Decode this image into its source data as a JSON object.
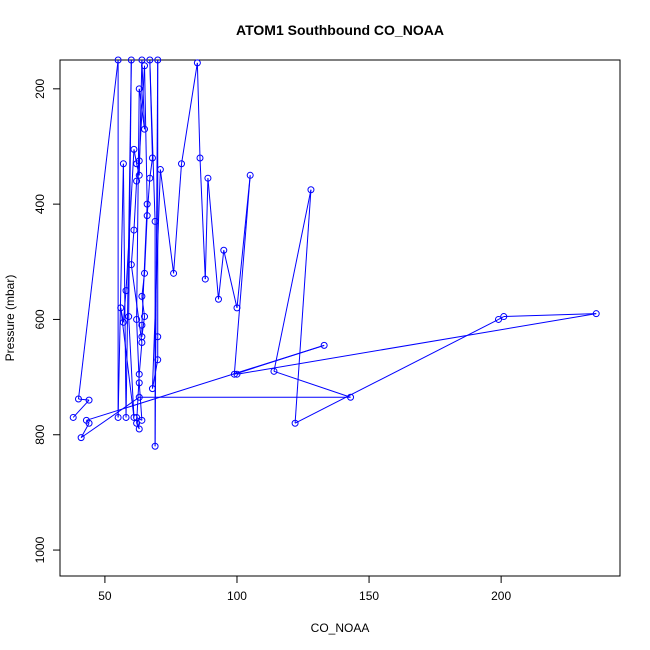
{
  "chart_data": {
    "type": "line",
    "title": "ATOM1 Southbound CO_NOAA",
    "xlabel": "CO_NOAA",
    "ylabel": "Pressure (mbar)",
    "xlim": [
      33,
      245
    ],
    "ylim": [
      1045,
      150
    ],
    "y_reversed": true,
    "xticks": [
      50,
      100,
      150,
      200
    ],
    "yticks": [
      200,
      400,
      600,
      800,
      1000
    ],
    "grid": false,
    "legend": "none",
    "color": "#0000ff",
    "series": [
      {
        "points": [
          [
            38,
            770
          ],
          [
            44,
            740
          ],
          [
            40,
            738
          ],
          [
            55,
            150
          ],
          [
            55,
            770
          ],
          [
            57,
            330
          ],
          [
            58,
            770
          ],
          [
            60,
            150
          ],
          [
            59,
            595
          ],
          [
            61,
            770
          ],
          [
            56,
            580
          ],
          [
            57,
            605
          ],
          [
            58,
            550
          ],
          [
            61,
            305
          ],
          [
            62,
            330
          ],
          [
            63,
            350
          ],
          [
            64,
            150
          ],
          [
            65,
            270
          ],
          [
            63,
            200
          ],
          [
            62,
            600
          ],
          [
            63,
            710
          ],
          [
            64,
            775
          ],
          [
            62,
            770
          ],
          [
            63,
            790
          ],
          [
            62,
            780
          ],
          [
            63,
            695
          ],
          [
            64,
            640
          ],
          [
            60,
            505
          ],
          [
            61,
            445
          ],
          [
            62,
            360
          ],
          [
            63,
            325
          ],
          [
            65,
            160
          ],
          [
            66,
            400
          ],
          [
            64,
            610
          ],
          [
            64,
            630
          ],
          [
            65,
            595
          ],
          [
            64,
            560
          ],
          [
            65,
            520
          ],
          [
            66,
            420
          ],
          [
            67,
            355
          ],
          [
            68,
            320
          ],
          [
            67,
            150
          ],
          [
            69,
            430
          ],
          [
            69,
            820
          ],
          [
            70,
            150
          ],
          [
            70,
            630
          ],
          [
            70,
            670
          ],
          [
            68,
            720
          ],
          [
            71,
            340
          ],
          [
            76,
            520
          ],
          [
            79,
            330
          ],
          [
            85,
            155
          ],
          [
            86,
            320
          ],
          [
            88,
            530
          ],
          [
            89,
            355
          ],
          [
            93,
            565
          ],
          [
            95,
            480
          ],
          [
            100,
            580
          ],
          [
            105,
            350
          ],
          [
            99,
            695
          ],
          [
            133,
            645
          ],
          [
            43,
            775
          ],
          [
            44,
            780
          ],
          [
            41,
            805
          ],
          [
            63,
            735
          ],
          [
            143,
            735
          ],
          [
            114,
            690
          ],
          [
            128,
            375
          ],
          [
            122,
            780
          ],
          [
            199,
            600
          ],
          [
            201,
            595
          ],
          [
            236,
            590
          ],
          [
            100,
            695
          ]
        ]
      }
    ]
  }
}
